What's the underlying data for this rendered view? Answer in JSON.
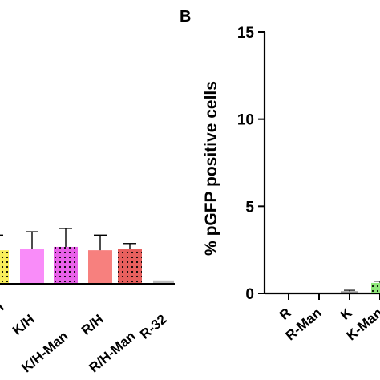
{
  "chart_data": [
    {
      "type": "bar",
      "panel_label": "",
      "categories": [
        "H",
        "K/H",
        "K/H-Man",
        "R/H",
        "R/H-Man",
        "R-32"
      ],
      "values": [
        2.0,
        2.1,
        2.2,
        2.0,
        2.1,
        0.2
      ],
      "errors": [
        0.9,
        1.0,
        1.1,
        0.9,
        0.3,
        0.0
      ],
      "colors": [
        "#f9ef5a",
        "#f98cf9",
        "#e961e9",
        "#f7807e",
        "#e8605e",
        "#bbbbbb"
      ],
      "patterns": [
        "dots",
        "none",
        "dots",
        "none",
        "dots",
        "none"
      ],
      "ylim": [
        0,
        15
      ],
      "title": "",
      "xlabel": "",
      "ylabel": ""
    },
    {
      "type": "bar",
      "panel_label": "B",
      "categories": [
        "R",
        "R-Man",
        "K",
        "K-Man"
      ],
      "values": [
        0.03,
        0.0,
        0.12,
        0.6
      ],
      "errors": [
        0.0,
        0.0,
        0.06,
        0.1
      ],
      "colors": [
        "#888888",
        "#888888",
        "#888888",
        "#8fe87a"
      ],
      "patterns": [
        "none",
        "none",
        "none",
        "dots"
      ],
      "ylim": [
        0,
        15
      ],
      "yticks": [
        "0",
        "5",
        "10",
        "15"
      ],
      "title": "",
      "xlabel": "",
      "ylabel": "% pGFP positive cells"
    }
  ]
}
